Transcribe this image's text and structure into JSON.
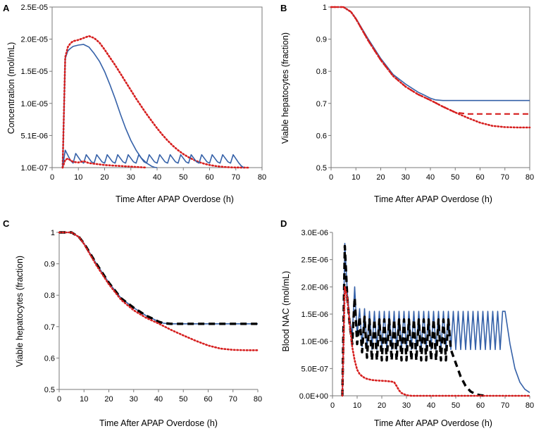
{
  "colors": {
    "solid": "#3561a8",
    "red": "#d61f1f",
    "black": "#000000"
  },
  "chart_data": [
    {
      "panel": "A",
      "type": "line",
      "title": "",
      "xlabel": "Time After APAP Overdose (h)",
      "ylabel": "Concentration (mol/mL)",
      "xlim": [
        0,
        80
      ],
      "ylim": [
        1e-07,
        2.5e-05
      ],
      "xticks": [
        "0",
        "10",
        "20",
        "30",
        "40",
        "50",
        "60",
        "70",
        "80"
      ],
      "yticks": [
        "1.0E-07",
        "5.1E-06",
        "1.0E-05",
        "1.5E-05",
        "2.0E-05",
        "2.5E-05"
      ],
      "series": [
        {
          "name": "solid-blue-high",
          "style": "solid",
          "color": "#3561a8",
          "x": [
            4,
            5,
            6,
            7,
            8,
            10,
            12,
            14,
            16,
            18,
            20,
            22,
            24,
            26,
            28,
            30,
            32,
            34,
            36,
            38,
            39,
            40
          ],
          "y": [
            1e-07,
            1.7e-05,
            1.82e-05,
            1.86e-05,
            1.89e-05,
            1.91e-05,
            1.92e-05,
            1.88e-05,
            1.78e-05,
            1.66e-05,
            1.5e-05,
            1.3e-05,
            1.08e-05,
            8.4e-06,
            6.2e-06,
            4.3e-06,
            2.8e-06,
            1.6e-06,
            8e-07,
            3e-07,
            1.5e-07,
            1e-07
          ]
        },
        {
          "name": "dotted-red-high",
          "style": "dotted",
          "color": "#d61f1f",
          "x": [
            4,
            5,
            6,
            7,
            8,
            10,
            12,
            14,
            16,
            18,
            20,
            22,
            24,
            26,
            28,
            30,
            32,
            34,
            36,
            38,
            40,
            42,
            44,
            46,
            48,
            50,
            52,
            54,
            56,
            58,
            60,
            62,
            64,
            66,
            68,
            70,
            72,
            74,
            75
          ],
          "y": [
            1e-07,
            1.72e-05,
            1.88e-05,
            1.94e-05,
            1.97e-05,
            1.99e-05,
            2.02e-05,
            2.05e-05,
            2.02e-05,
            1.95e-05,
            1.84e-05,
            1.72e-05,
            1.6e-05,
            1.47e-05,
            1.34e-05,
            1.21e-05,
            1.08e-05,
            9.6e-06,
            8.4e-06,
            7.3e-06,
            6.2e-06,
            5.2e-06,
            4.3e-06,
            3.5e-06,
            2.8e-06,
            2.2e-06,
            1.7e-06,
            1.3e-06,
            9.5e-07,
            7e-07,
            5e-07,
            3.6e-07,
            2.6e-07,
            1.9e-07,
            1.4e-07,
            1.2e-07,
            1.1e-07,
            1.05e-07,
            1e-07
          ]
        },
        {
          "name": "solid-blue-pulses",
          "style": "solid",
          "color": "#3561a8",
          "x": [
            4,
            5,
            7,
            8,
            9,
            11,
            12,
            13,
            15,
            16,
            17,
            19,
            20,
            21,
            23,
            24,
            25,
            27,
            28,
            29,
            31,
            32,
            33,
            35,
            36,
            37,
            39,
            40,
            41,
            43,
            44,
            45,
            47,
            48,
            49,
            51,
            52,
            53,
            55,
            56,
            57,
            59,
            60,
            61,
            63,
            64,
            65,
            67,
            68,
            69,
            71,
            72,
            73
          ],
          "y": [
            1e-07,
            2.8e-06,
            1.2e-06,
            8e-07,
            2.3e-06,
            1.1e-06,
            8e-07,
            2.1e-06,
            1e-06,
            8e-07,
            2.1e-06,
            1e-06,
            8e-07,
            2.1e-06,
            1e-06,
            8e-07,
            2.1e-06,
            1e-06,
            8e-07,
            2.1e-06,
            1e-06,
            8e-07,
            2.1e-06,
            1e-06,
            8e-07,
            2.1e-06,
            1e-06,
            8e-07,
            2.1e-06,
            1e-06,
            8e-07,
            2.1e-06,
            1e-06,
            8e-07,
            2.1e-06,
            1e-06,
            8e-07,
            2.1e-06,
            1e-06,
            8e-07,
            2.1e-06,
            1e-06,
            8e-07,
            2.1e-06,
            1e-06,
            8e-07,
            2.1e-06,
            1e-06,
            8e-07,
            2.1e-06,
            9e-07,
            4e-07,
            1e-07
          ]
        },
        {
          "name": "dotted-red-low",
          "style": "dotted",
          "color": "#d61f1f",
          "x": [
            4,
            5,
            6,
            8,
            10,
            12,
            14,
            16,
            18,
            20,
            22,
            24,
            26,
            28,
            30,
            32,
            34,
            36
          ],
          "y": [
            1e-07,
            1.3e-06,
            1.5e-06,
            1e-06,
            9e-07,
            1.1e-06,
            8e-07,
            7e-07,
            6e-07,
            5e-07,
            4.5e-07,
            4e-07,
            3.5e-07,
            3e-07,
            2.5e-07,
            2e-07,
            1.5e-07,
            1e-07
          ]
        }
      ]
    },
    {
      "panel": "B",
      "type": "line",
      "title": "",
      "xlabel": "Time After APAP Overdose (h)",
      "ylabel": "Viable hepatocytes (fraction)",
      "xlim": [
        0,
        80
      ],
      "ylim": [
        0.5,
        1
      ],
      "xticks": [
        "0",
        "10",
        "20",
        "30",
        "40",
        "50",
        "60",
        "70",
        "80"
      ],
      "yticks": [
        "0.5",
        "0.6",
        "0.7",
        "0.8",
        "0.9",
        "1"
      ],
      "series": [
        {
          "name": "solid-blue",
          "style": "solid",
          "color": "#3561a8",
          "x": [
            0,
            5,
            7,
            8,
            10,
            15,
            20,
            25,
            30,
            35,
            38,
            40,
            42,
            45,
            50,
            60,
            70,
            80
          ],
          "y": [
            1,
            1,
            0.99,
            0.985,
            0.965,
            0.9,
            0.84,
            0.79,
            0.76,
            0.735,
            0.724,
            0.716,
            0.711,
            0.709,
            0.709,
            0.709,
            0.709,
            0.709
          ]
        },
        {
          "name": "dashed-red",
          "style": "dashed",
          "color": "#d61f1f",
          "x": [
            0,
            5,
            7,
            8,
            10,
            15,
            20,
            25,
            30,
            35,
            40,
            45,
            50,
            55,
            60,
            70,
            80
          ],
          "y": [
            1,
            1,
            0.99,
            0.985,
            0.963,
            0.895,
            0.835,
            0.785,
            0.752,
            0.728,
            0.71,
            0.69,
            0.672,
            0.667,
            0.667,
            0.667,
            0.667
          ]
        },
        {
          "name": "dotted-red",
          "style": "dotted",
          "color": "#d61f1f",
          "x": [
            0,
            5,
            7,
            8,
            10,
            15,
            20,
            25,
            30,
            35,
            40,
            45,
            50,
            55,
            60,
            65,
            70,
            75,
            80
          ],
          "y": [
            1,
            1,
            0.99,
            0.985,
            0.963,
            0.895,
            0.835,
            0.785,
            0.752,
            0.728,
            0.71,
            0.69,
            0.672,
            0.655,
            0.64,
            0.63,
            0.626,
            0.625,
            0.625
          ]
        }
      ]
    },
    {
      "panel": "C",
      "type": "line",
      "title": "",
      "xlabel": "Time After APAP Overdose (h)",
      "ylabel": "Viable hepatocytes (fraction)",
      "xlim": [
        0,
        80
      ],
      "ylim": [
        0.5,
        1
      ],
      "xticks": [
        "0",
        "10",
        "20",
        "30",
        "40",
        "50",
        "60",
        "70",
        "80"
      ],
      "yticks": [
        "0.5",
        "0.6",
        "0.7",
        "0.8",
        "0.9",
        "1"
      ],
      "series": [
        {
          "name": "solid-blue",
          "style": "solid",
          "color": "#3561a8",
          "x": [
            0,
            5,
            7,
            8,
            10,
            15,
            20,
            25,
            30,
            35,
            38,
            40,
            42,
            45,
            50,
            60,
            70,
            80
          ],
          "y": [
            1,
            1,
            0.99,
            0.985,
            0.965,
            0.9,
            0.84,
            0.79,
            0.76,
            0.735,
            0.724,
            0.716,
            0.711,
            0.709,
            0.709,
            0.709,
            0.709,
            0.709
          ]
        },
        {
          "name": "dashed-black",
          "style": "dashed-bold",
          "color": "#000000",
          "x": [
            0,
            5,
            7,
            8,
            10,
            15,
            20,
            25,
            30,
            35,
            38,
            40,
            42,
            45,
            50,
            60,
            70,
            80
          ],
          "y": [
            1,
            1,
            0.99,
            0.985,
            0.965,
            0.9,
            0.84,
            0.79,
            0.76,
            0.735,
            0.724,
            0.716,
            0.711,
            0.709,
            0.709,
            0.709,
            0.709,
            0.709
          ]
        },
        {
          "name": "dotted-red",
          "style": "dotted",
          "color": "#d61f1f",
          "x": [
            0,
            5,
            7,
            8,
            10,
            15,
            20,
            25,
            30,
            35,
            40,
            45,
            50,
            55,
            60,
            65,
            70,
            75,
            80
          ],
          "y": [
            1,
            1,
            0.99,
            0.985,
            0.963,
            0.895,
            0.835,
            0.785,
            0.752,
            0.728,
            0.71,
            0.69,
            0.672,
            0.655,
            0.64,
            0.63,
            0.626,
            0.625,
            0.625
          ]
        }
      ]
    },
    {
      "panel": "D",
      "type": "line",
      "title": "",
      "xlabel": "Time After APAP Overdose (h)",
      "ylabel": "Blood NAC (mol/mL)",
      "xlim": [
        0,
        80
      ],
      "ylim": [
        0,
        3e-06
      ],
      "xticks": [
        "0",
        "10",
        "20",
        "30",
        "40",
        "50",
        "60",
        "70",
        "80"
      ],
      "yticks": [
        "0.0E+00",
        "5.0E-07",
        "1.0E-06",
        "1.5E-06",
        "2.0E-06",
        "2.5E-06",
        "3.0E-06"
      ],
      "series": [
        {
          "name": "solid-blue",
          "style": "solid",
          "color": "#3561a8",
          "x": [
            4,
            5,
            6,
            7,
            8,
            9,
            10,
            11,
            12,
            13,
            14,
            15,
            16,
            17,
            18,
            19,
            20,
            21,
            22,
            23,
            24,
            25,
            26,
            27,
            28,
            29,
            30,
            31,
            32,
            33,
            34,
            35,
            36,
            37,
            38,
            39,
            40,
            41,
            42,
            43,
            44,
            45,
            46,
            47,
            48,
            49,
            50,
            51,
            52,
            53,
            54,
            55,
            56,
            57,
            58,
            59,
            60,
            61,
            62,
            63,
            64,
            65,
            66,
            67,
            68,
            69,
            70,
            72,
            74,
            76,
            78,
            80
          ],
          "y": [
            0,
            2.8e-06,
            1.9e-06,
            1.4e-06,
            1.1e-06,
            2e-06,
            1.1e-06,
            1.6e-06,
            9e-07,
            1.6e-06,
            8.5e-07,
            1.55e-06,
            8.5e-07,
            1.55e-06,
            8.5e-07,
            1.55e-06,
            8.5e-07,
            1.55e-06,
            8.5e-07,
            1.55e-06,
            8.5e-07,
            1.55e-06,
            8.5e-07,
            1.55e-06,
            8.5e-07,
            1.55e-06,
            8.5e-07,
            1.55e-06,
            8.5e-07,
            1.55e-06,
            8.5e-07,
            1.55e-06,
            8.5e-07,
            1.55e-06,
            8.5e-07,
            1.55e-06,
            8.5e-07,
            1.55e-06,
            8.5e-07,
            1.55e-06,
            8.5e-07,
            1.55e-06,
            8.5e-07,
            1.55e-06,
            8.5e-07,
            1.55e-06,
            8.5e-07,
            1.55e-06,
            8.5e-07,
            1.55e-06,
            8.5e-07,
            1.55e-06,
            8.5e-07,
            1.55e-06,
            8.5e-07,
            1.55e-06,
            8.5e-07,
            1.55e-06,
            8.5e-07,
            1.55e-06,
            8.5e-07,
            1.55e-06,
            8.5e-07,
            1.55e-06,
            8.5e-07,
            1.55e-06,
            1.55e-06,
            9.5e-07,
            5e-07,
            2.5e-07,
            1.2e-07,
            6e-08
          ]
        },
        {
          "name": "dashed-black",
          "style": "dashed-bold",
          "color": "#000000",
          "x": [
            4,
            5,
            6,
            7,
            8,
            9,
            10,
            11,
            12,
            13,
            14,
            15,
            16,
            17,
            18,
            19,
            20,
            21,
            22,
            23,
            24,
            25,
            26,
            27,
            28,
            29,
            30,
            31,
            32,
            33,
            34,
            35,
            36,
            37,
            38,
            39,
            40,
            41,
            42,
            43,
            44,
            45,
            46,
            47,
            48,
            50,
            52,
            54,
            56,
            58,
            60,
            62
          ],
          "y": [
            0,
            2.75e-06,
            1.8e-06,
            1.3e-06,
            9.5e-07,
            1.8e-06,
            9.5e-07,
            1.45e-06,
            8e-07,
            1.45e-06,
            7e-07,
            1.4e-06,
            6.5e-07,
            1.4e-06,
            6.5e-07,
            1.4e-06,
            6.5e-07,
            1.4e-06,
            6.5e-07,
            1.4e-06,
            6.5e-07,
            1.4e-06,
            6.5e-07,
            1.4e-06,
            6.5e-07,
            1.4e-06,
            6.5e-07,
            1.4e-06,
            6.5e-07,
            1.4e-06,
            6.5e-07,
            1.4e-06,
            6.5e-07,
            1.4e-06,
            6.5e-07,
            1.4e-06,
            6.5e-07,
            1.4e-06,
            6.5e-07,
            1.4e-06,
            6.5e-07,
            1.4e-06,
            6.5e-07,
            1.4e-06,
            8.5e-07,
            6e-07,
            3.5e-07,
            1.8e-07,
            8e-08,
            3e-08,
            1e-08,
            0
          ]
        },
        {
          "name": "dotted-red",
          "style": "dotted",
          "color": "#d61f1f",
          "x": [
            4,
            5,
            6,
            7,
            8,
            9,
            10,
            11,
            12,
            13,
            14,
            16,
            18,
            20,
            22,
            24,
            25,
            26,
            27,
            28,
            30,
            32,
            40,
            50,
            60,
            70,
            80
          ],
          "y": [
            0,
            2e-06,
            1.8e-06,
            1.3e-06,
            9e-07,
            6.5e-07,
            4.8e-07,
            4e-07,
            3.6e-07,
            3.3e-07,
            3.1e-07,
            2.9e-07,
            2.8e-07,
            2.75e-07,
            2.7e-07,
            2.6e-07,
            2.5e-07,
            1.8e-07,
            1e-07,
            5e-08,
            1e-08,
            0,
            0,
            0,
            0,
            0,
            0
          ]
        }
      ]
    }
  ]
}
